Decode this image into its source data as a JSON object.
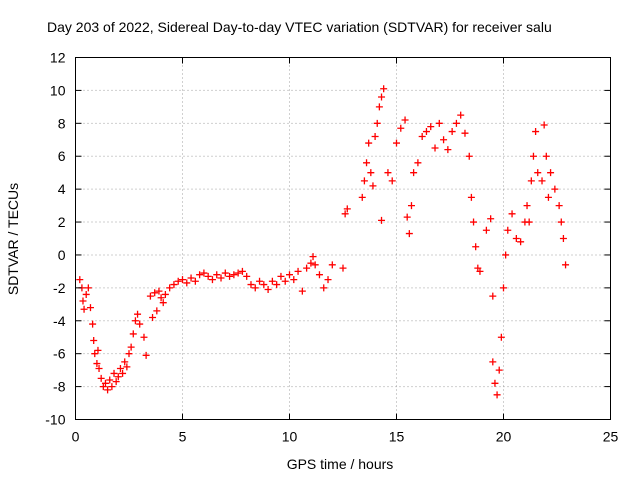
{
  "chart_data": {
    "type": "scatter",
    "title": "Day 203 of 2022, Sidereal Day-to-day VTEC variation (SDTVAR) for receiver salu",
    "xlabel": "GPS time / hours",
    "ylabel": "SDTVAR / TECUs",
    "xlim": [
      0,
      25
    ],
    "ylim": [
      -10,
      12
    ],
    "xticks": [
      0,
      5,
      10,
      15,
      20,
      25
    ],
    "yticks": [
      -10,
      -8,
      -6,
      -4,
      -2,
      0,
      2,
      4,
      6,
      8,
      10,
      12
    ],
    "grid": true,
    "marker": "+",
    "color": "#ff0000",
    "series": [
      {
        "points": [
          [
            0.2,
            -1.5
          ],
          [
            0.3,
            -2.0
          ],
          [
            0.35,
            -2.8
          ],
          [
            0.4,
            -3.3
          ],
          [
            0.5,
            -2.4
          ],
          [
            0.6,
            -2.0
          ],
          [
            0.7,
            -3.2
          ],
          [
            0.8,
            -4.2
          ],
          [
            0.85,
            -5.2
          ],
          [
            0.9,
            -6.0
          ],
          [
            1.0,
            -6.6
          ],
          [
            1.05,
            -5.8
          ],
          [
            1.1,
            -6.9
          ],
          [
            1.2,
            -7.5
          ],
          [
            1.3,
            -8.0
          ],
          [
            1.4,
            -7.8
          ],
          [
            1.5,
            -8.2
          ],
          [
            1.6,
            -7.6
          ],
          [
            1.7,
            -8.0
          ],
          [
            1.8,
            -7.2
          ],
          [
            1.9,
            -7.7
          ],
          [
            2.0,
            -7.4
          ],
          [
            2.1,
            -6.9
          ],
          [
            2.2,
            -7.2
          ],
          [
            2.3,
            -6.5
          ],
          [
            2.4,
            -6.8
          ],
          [
            2.5,
            -6.0
          ],
          [
            2.6,
            -5.6
          ],
          [
            2.7,
            -4.8
          ],
          [
            2.8,
            -4.0
          ],
          [
            2.9,
            -3.6
          ],
          [
            3.0,
            -4.2
          ],
          [
            3.2,
            -5.0
          ],
          [
            3.3,
            -6.1
          ],
          [
            3.5,
            -2.5
          ],
          [
            3.6,
            -3.8
          ],
          [
            3.7,
            -2.3
          ],
          [
            3.8,
            -3.4
          ],
          [
            3.9,
            -2.2
          ],
          [
            4.0,
            -2.6
          ],
          [
            4.1,
            -2.9
          ],
          [
            4.2,
            -2.4
          ],
          [
            4.4,
            -2.0
          ],
          [
            4.6,
            -1.8
          ],
          [
            4.8,
            -1.6
          ],
          [
            5.0,
            -1.5
          ],
          [
            5.2,
            -1.7
          ],
          [
            5.4,
            -1.4
          ],
          [
            5.6,
            -1.6
          ],
          [
            5.8,
            -1.2
          ],
          [
            6.0,
            -1.1
          ],
          [
            6.2,
            -1.3
          ],
          [
            6.4,
            -1.5
          ],
          [
            6.6,
            -1.2
          ],
          [
            6.8,
            -1.4
          ],
          [
            7.0,
            -1.1
          ],
          [
            7.2,
            -1.3
          ],
          [
            7.4,
            -1.2
          ],
          [
            7.6,
            -1.1
          ],
          [
            7.8,
            -1.0
          ],
          [
            8.0,
            -1.3
          ],
          [
            8.2,
            -1.8
          ],
          [
            8.4,
            -2.0
          ],
          [
            8.6,
            -1.6
          ],
          [
            8.8,
            -1.8
          ],
          [
            9.0,
            -2.1
          ],
          [
            9.2,
            -1.6
          ],
          [
            9.4,
            -1.8
          ],
          [
            9.6,
            -1.3
          ],
          [
            9.8,
            -1.6
          ],
          [
            10.0,
            -1.2
          ],
          [
            10.2,
            -1.5
          ],
          [
            10.4,
            -1.0
          ],
          [
            10.6,
            -2.2
          ],
          [
            10.8,
            -0.8
          ],
          [
            11.0,
            -0.5
          ],
          [
            11.1,
            -0.1
          ],
          [
            11.2,
            -0.6
          ],
          [
            11.4,
            -1.2
          ],
          [
            11.6,
            -2.0
          ],
          [
            11.8,
            -1.5
          ],
          [
            12.0,
            -0.6
          ],
          [
            12.5,
            -0.8
          ],
          [
            12.6,
            2.5
          ],
          [
            12.7,
            2.8
          ],
          [
            13.4,
            3.5
          ],
          [
            13.5,
            4.5
          ],
          [
            13.6,
            5.6
          ],
          [
            13.7,
            6.8
          ],
          [
            13.8,
            5.0
          ],
          [
            13.9,
            4.2
          ],
          [
            14.0,
            7.2
          ],
          [
            14.1,
            8.0
          ],
          [
            14.2,
            9.0
          ],
          [
            14.3,
            9.6
          ],
          [
            14.4,
            10.1
          ],
          [
            14.3,
            2.1
          ],
          [
            14.6,
            5.0
          ],
          [
            14.8,
            4.5
          ],
          [
            15.0,
            6.8
          ],
          [
            15.2,
            7.7
          ],
          [
            15.4,
            8.2
          ],
          [
            15.5,
            2.3
          ],
          [
            15.6,
            1.3
          ],
          [
            15.7,
            3.0
          ],
          [
            15.8,
            5.0
          ],
          [
            16.0,
            5.6
          ],
          [
            16.2,
            7.2
          ],
          [
            16.4,
            7.5
          ],
          [
            16.6,
            7.8
          ],
          [
            16.8,
            6.5
          ],
          [
            17.0,
            8.0
          ],
          [
            17.2,
            7.0
          ],
          [
            17.4,
            6.4
          ],
          [
            17.6,
            7.5
          ],
          [
            17.8,
            8.0
          ],
          [
            18.0,
            8.5
          ],
          [
            18.2,
            7.4
          ],
          [
            18.4,
            6.0
          ],
          [
            18.5,
            3.5
          ],
          [
            18.6,
            2.0
          ],
          [
            18.7,
            0.5
          ],
          [
            18.8,
            -0.8
          ],
          [
            18.9,
            -1.0
          ],
          [
            19.2,
            1.5
          ],
          [
            19.4,
            2.2
          ],
          [
            19.5,
            -2.5
          ],
          [
            19.5,
            -6.5
          ],
          [
            19.6,
            -7.8
          ],
          [
            19.7,
            -8.5
          ],
          [
            19.8,
            -7.0
          ],
          [
            19.9,
            -5.0
          ],
          [
            20.0,
            -2.0
          ],
          [
            20.1,
            0.0
          ],
          [
            20.2,
            1.5
          ],
          [
            20.4,
            2.5
          ],
          [
            20.6,
            1.0
          ],
          [
            20.8,
            0.8
          ],
          [
            21.0,
            2.0
          ],
          [
            21.1,
            3.0
          ],
          [
            21.2,
            2.0
          ],
          [
            21.3,
            4.5
          ],
          [
            21.4,
            6.0
          ],
          [
            21.5,
            7.5
          ],
          [
            21.6,
            5.0
          ],
          [
            21.8,
            4.5
          ],
          [
            21.9,
            7.9
          ],
          [
            22.0,
            6.0
          ],
          [
            22.1,
            3.5
          ],
          [
            22.2,
            5.0
          ],
          [
            22.4,
            4.0
          ],
          [
            22.6,
            3.0
          ],
          [
            22.7,
            2.0
          ],
          [
            22.8,
            1.0
          ],
          [
            22.9,
            -0.6
          ]
        ]
      }
    ]
  }
}
